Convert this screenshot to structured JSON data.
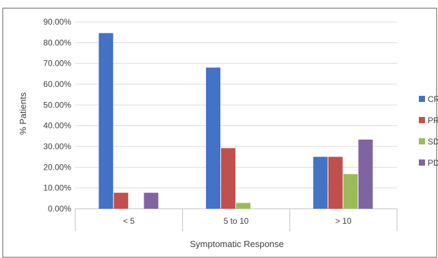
{
  "chart_data": {
    "type": "bar",
    "categories": [
      "< 5",
      "5 to 10",
      "> 10"
    ],
    "series": [
      {
        "name": "CR",
        "color": "#4472c4",
        "values": [
          84.6,
          68.0,
          25.0
        ]
      },
      {
        "name": "PR",
        "color": "#c0504d",
        "values": [
          7.7,
          29.2,
          25.0
        ]
      },
      {
        "name": "SD",
        "color": "#9bbb59",
        "values": [
          0.0,
          2.8,
          16.7
        ]
      },
      {
        "name": "PD",
        "color": "#8064a2",
        "values": [
          7.7,
          0.0,
          33.3
        ]
      }
    ],
    "ylim": [
      0,
      90
    ],
    "yticks": [
      "0.00%",
      "10.00%",
      "20.00%",
      "30.00%",
      "40.00%",
      "50.00%",
      "60.00%",
      "70.00%",
      "80.00%",
      "90.00%"
    ],
    "xlabel": "Symptomatic Response",
    "ylabel": "% Patients",
    "grid": true,
    "legend_position": "right",
    "gridline_color": "#d9d9d9",
    "axis_color": "#bfbfbf"
  }
}
